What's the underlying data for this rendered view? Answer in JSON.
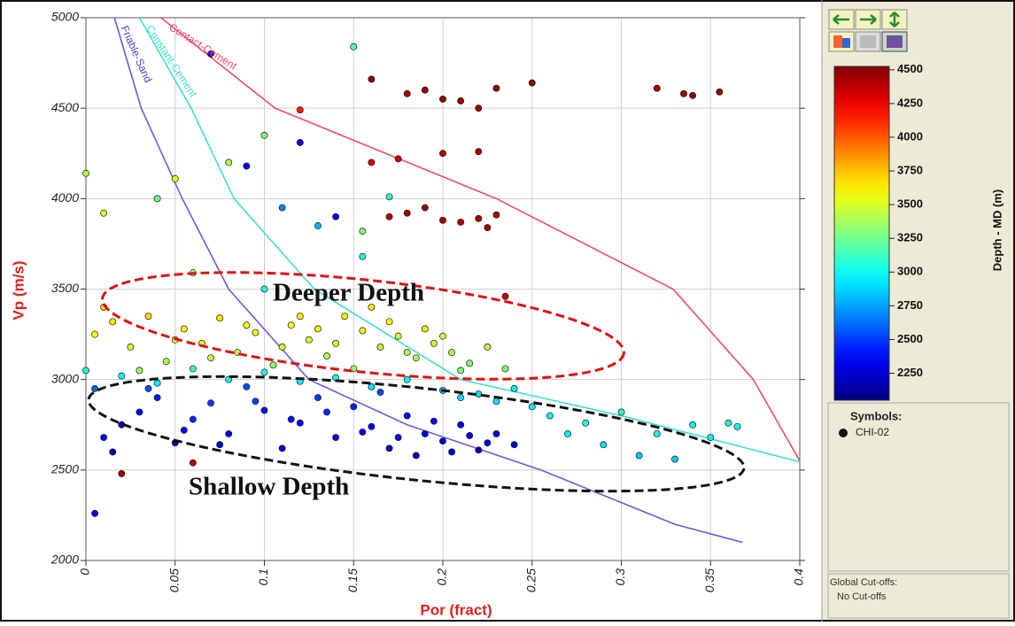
{
  "chart_data": {
    "type": "scatter",
    "xlabel": "Por (fract)",
    "ylabel": "Vp (m/s)",
    "xlim": [
      0,
      0.4
    ],
    "ylim": [
      2000,
      5000
    ],
    "xticks": [
      0,
      0.05,
      0.1,
      0.15,
      0.2,
      0.25,
      0.3,
      0.35,
      0.4
    ],
    "yticks": [
      2000,
      2500,
      3000,
      3500,
      4000,
      4500,
      5000
    ],
    "grid": true,
    "colorbar": {
      "label": "Depth - MD (m)",
      "clim": [
        2050,
        4525
      ],
      "ticks": [
        2250,
        2500,
        2750,
        3000,
        3250,
        3500,
        3750,
        4000,
        4250,
        4500
      ],
      "colormap": "jet"
    },
    "legend_title": "Symbols:",
    "cutoffs_title": "Global Cut-offs:",
    "cutoffs_text": "No Cut-offs",
    "annotations": [
      "Deeper Depth",
      "Shallow Depth"
    ],
    "curves": [
      {
        "name": "Friable-Sand",
        "color": "#6b5be0",
        "x": [
          0.016,
          0.031,
          0.054,
          0.08,
          0.125,
          0.18,
          0.255,
          0.33,
          0.368
        ],
        "y": [
          5000,
          4500,
          4000,
          3500,
          3000,
          2750,
          2500,
          2200,
          2100
        ]
      },
      {
        "name": "Constant-Cement",
        "color": "#3fe0c8",
        "x": [
          0.03,
          0.059,
          0.083,
          0.128,
          0.21,
          0.3,
          0.4
        ],
        "y": [
          5000,
          4500,
          4000,
          3500,
          3000,
          2800,
          2545
        ]
      },
      {
        "name": "Contact-Cement",
        "color": "#f04a6a",
        "x": [
          0.042,
          0.106,
          0.23,
          0.329,
          0.374,
          0.4
        ],
        "y": [
          5000,
          4500,
          4000,
          3500,
          3000,
          2550
        ]
      }
    ],
    "series": [
      {
        "name": "CHI-02",
        "x": [
          0.01,
          0.02,
          0.03,
          0.04,
          0.05,
          0.06,
          0.07,
          0.08,
          0.09,
          0.1,
          0.11,
          0.12,
          0.13,
          0.14,
          0.15,
          0.16,
          0.17,
          0.18,
          0.19,
          0.2,
          0.21,
          0.22,
          0.23,
          0.24,
          0.005,
          0.015,
          0.035,
          0.055,
          0.075,
          0.095,
          0.115,
          0.135,
          0.155,
          0.175,
          0.195,
          0.205,
          0.215,
          0.225,
          0.185,
          0.165,
          0.005,
          0.015,
          0.025,
          0.035,
          0.045,
          0.055,
          0.065,
          0.075,
          0.085,
          0.095,
          0.105,
          0.115,
          0.125,
          0.135,
          0.145,
          0.155,
          0.165,
          0.175,
          0.185,
          0.195,
          0.205,
          0.215,
          0.225,
          0.235,
          0.01,
          0.03,
          0.05,
          0.07,
          0.09,
          0.11,
          0.13,
          0.15,
          0.17,
          0.19,
          0.21,
          0.16,
          0.18,
          0.2,
          0.14,
          0.12,
          0,
          0.02,
          0.04,
          0.06,
          0.08,
          0.1,
          0.12,
          0.14,
          0.16,
          0.18,
          0.2,
          0.22,
          0.24,
          0.26,
          0.27,
          0.28,
          0.29,
          0.3,
          0.31,
          0.32,
          0.33,
          0.34,
          0.35,
          0.36,
          0.365,
          0.25,
          0.23,
          0.21,
          0.16,
          0.18,
          0.19,
          0.2,
          0.21,
          0.22,
          0.23,
          0.25,
          0.32,
          0.335,
          0.34,
          0.355,
          0.17,
          0.18,
          0.19,
          0.2,
          0.21,
          0.22,
          0.225,
          0.23,
          0.16,
          0.175,
          0.2,
          0.22,
          0.235,
          0.12,
          0.07,
          0,
          0.01,
          0.05,
          0.08,
          0.1,
          0.12,
          0.14,
          0.15,
          0.17,
          0.13,
          0.06,
          0.04,
          0.09,
          0.11,
          0.155,
          0.005,
          0.02,
          0.06,
          0.155,
          0.1
        ],
        "y": [
          2680,
          2750,
          2820,
          2900,
          2650,
          2780,
          2870,
          2700,
          2960,
          2830,
          2620,
          2760,
          2900,
          2680,
          2850,
          2740,
          2620,
          2800,
          2700,
          2660,
          2750,
          2610,
          2700,
          2640,
          2950,
          2600,
          2950,
          2720,
          2640,
          2880,
          2780,
          2820,
          2710,
          2680,
          2770,
          2600,
          2690,
          2650,
          2580,
          2930,
          3250,
          3320,
          3180,
          3350,
          3100,
          3280,
          3200,
          3340,
          3150,
          3260,
          3080,
          3300,
          3220,
          3130,
          3350,
          3270,
          3180,
          3240,
          3120,
          3200,
          3150,
          3090,
          3180,
          3060,
          3400,
          3050,
          3220,
          3120,
          3300,
          3180,
          3280,
          3060,
          3320,
          3280,
          3050,
          3400,
          3150,
          3240,
          3200,
          3350,
          3050,
          3020,
          2980,
          3060,
          3000,
          3040,
          2990,
          3010,
          2960,
          3000,
          2940,
          2920,
          2950,
          2800,
          2700,
          2760,
          2640,
          2820,
          2580,
          2700,
          2560,
          2750,
          2680,
          2760,
          2740,
          2850,
          2880,
          2900,
          4660,
          4580,
          4600,
          4550,
          4540,
          4500,
          4610,
          4640,
          4610,
          4580,
          4570,
          4590,
          3900,
          3920,
          3950,
          3880,
          3870,
          3890,
          3840,
          3910,
          4200,
          4220,
          4250,
          4260,
          3460,
          4490,
          4800,
          4140,
          3920,
          4110,
          4200,
          4350,
          4310,
          3900,
          4840,
          4010,
          3850,
          3590,
          4000,
          4180,
          3950,
          3680,
          2260,
          2480,
          2540,
          3820,
          3500
        ],
        "depth": [
          2300,
          2250,
          2350,
          2400,
          2200,
          2450,
          2500,
          2300,
          2550,
          2400,
          2250,
          2350,
          2500,
          2300,
          2450,
          2350,
          2250,
          2400,
          2300,
          2250,
          2350,
          2200,
          2300,
          2250,
          2600,
          2200,
          2550,
          2350,
          2250,
          2500,
          2400,
          2450,
          2300,
          2300,
          2350,
          2250,
          2300,
          2250,
          2200,
          2550,
          3600,
          3650,
          3500,
          3700,
          3400,
          3600,
          3550,
          3650,
          3450,
          3550,
          3350,
          3600,
          3500,
          3400,
          3650,
          3550,
          3450,
          3500,
          3400,
          3450,
          3400,
          3300,
          3450,
          3300,
          3700,
          3350,
          3550,
          3450,
          3600,
          3500,
          3550,
          3350,
          3600,
          3550,
          3300,
          3650,
          3400,
          3500,
          3500,
          3650,
          3050,
          3000,
          2950,
          3100,
          3000,
          3050,
          2950,
          3000,
          2900,
          2950,
          2850,
          2900,
          2950,
          3000,
          2950,
          3050,
          2900,
          3100,
          2850,
          3000,
          2850,
          3000,
          2950,
          3050,
          3000,
          2950,
          2900,
          2900,
          4500,
          4450,
          4480,
          4480,
          4450,
          4450,
          4500,
          4480,
          4450,
          4450,
          4480,
          4450,
          4420,
          4450,
          4480,
          4450,
          4420,
          4420,
          4450,
          4400,
          4300,
          4350,
          4380,
          4400,
          4350,
          4150,
          2300,
          3400,
          3500,
          3550,
          3400,
          3300,
          2300,
          2300,
          3200,
          3100,
          2800,
          3400,
          3250,
          2350,
          2700,
          3050,
          2300,
          4450,
          4400,
          3300,
          3050
        ]
      }
    ]
  }
}
